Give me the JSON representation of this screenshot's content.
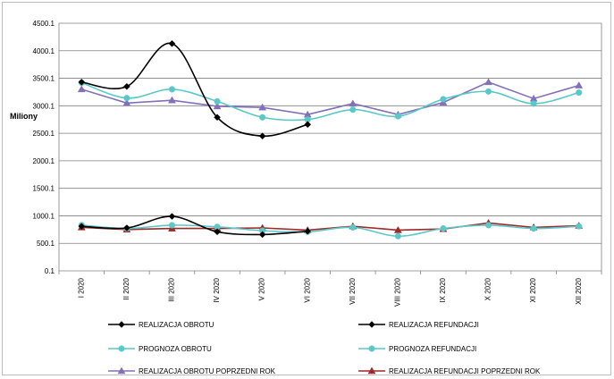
{
  "chart_data": {
    "type": "line",
    "ylabel": "Miliony",
    "ylim": [
      0.1,
      4500.1
    ],
    "yticks": [
      "0.1",
      "500.1",
      "1000.1",
      "1500.1",
      "2000.1",
      "2500.1",
      "3000.1",
      "3500.1",
      "4000.1",
      "4500.1"
    ],
    "categories": [
      "I 2020",
      "II 2020",
      "III 2020",
      "IV 2020",
      "V 2020",
      "VI 2020",
      "VII 2020",
      "VIII 2020",
      "IX 2020",
      "X 2020",
      "XI 2020",
      "XII 2020"
    ],
    "grid": true,
    "legend_position": "bottom",
    "series": [
      {
        "name": "REALIZACJA OBROTU",
        "color": "#000000",
        "marker": "diamond",
        "smooth": true,
        "values": [
          3430,
          3350,
          4130,
          2790,
          2450,
          2660,
          null,
          null,
          null,
          null,
          null,
          null
        ]
      },
      {
        "name": "REALIZACJA REFUNDACJI",
        "color": "#000000",
        "marker": "diamond",
        "smooth": true,
        "values": [
          810,
          780,
          990,
          710,
          660,
          720,
          null,
          null,
          null,
          null,
          null,
          null
        ]
      },
      {
        "name": "PROGNOZA OBROTU",
        "color": "#5bc8c8",
        "marker": "circle",
        "smooth": true,
        "values": [
          3420,
          3140,
          3300,
          3080,
          2790,
          2750,
          2930,
          2810,
          3120,
          3260,
          3040,
          3240
        ]
      },
      {
        "name": "PROGNOZA REFUNDACJI",
        "color": "#5bc8c8",
        "marker": "circle",
        "smooth": true,
        "values": [
          830,
          770,
          830,
          800,
          730,
          710,
          790,
          630,
          770,
          830,
          770,
          810
        ]
      },
      {
        "name": "REALIZACJA OBROTU POPRZEDNI ROK",
        "color": "#8470b8",
        "marker": "triangle",
        "smooth": false,
        "values": [
          3300,
          3050,
          3100,
          2990,
          2970,
          2840,
          3040,
          2840,
          3060,
          3430,
          3130,
          3370
        ]
      },
      {
        "name": "REALIZACJA REFUNDACJI POPRZEDNI ROK",
        "color": "#9b2a28",
        "marker": "triangle",
        "smooth": false,
        "values": [
          790,
          750,
          770,
          770,
          780,
          740,
          810,
          740,
          760,
          870,
          790,
          820
        ]
      }
    ]
  }
}
